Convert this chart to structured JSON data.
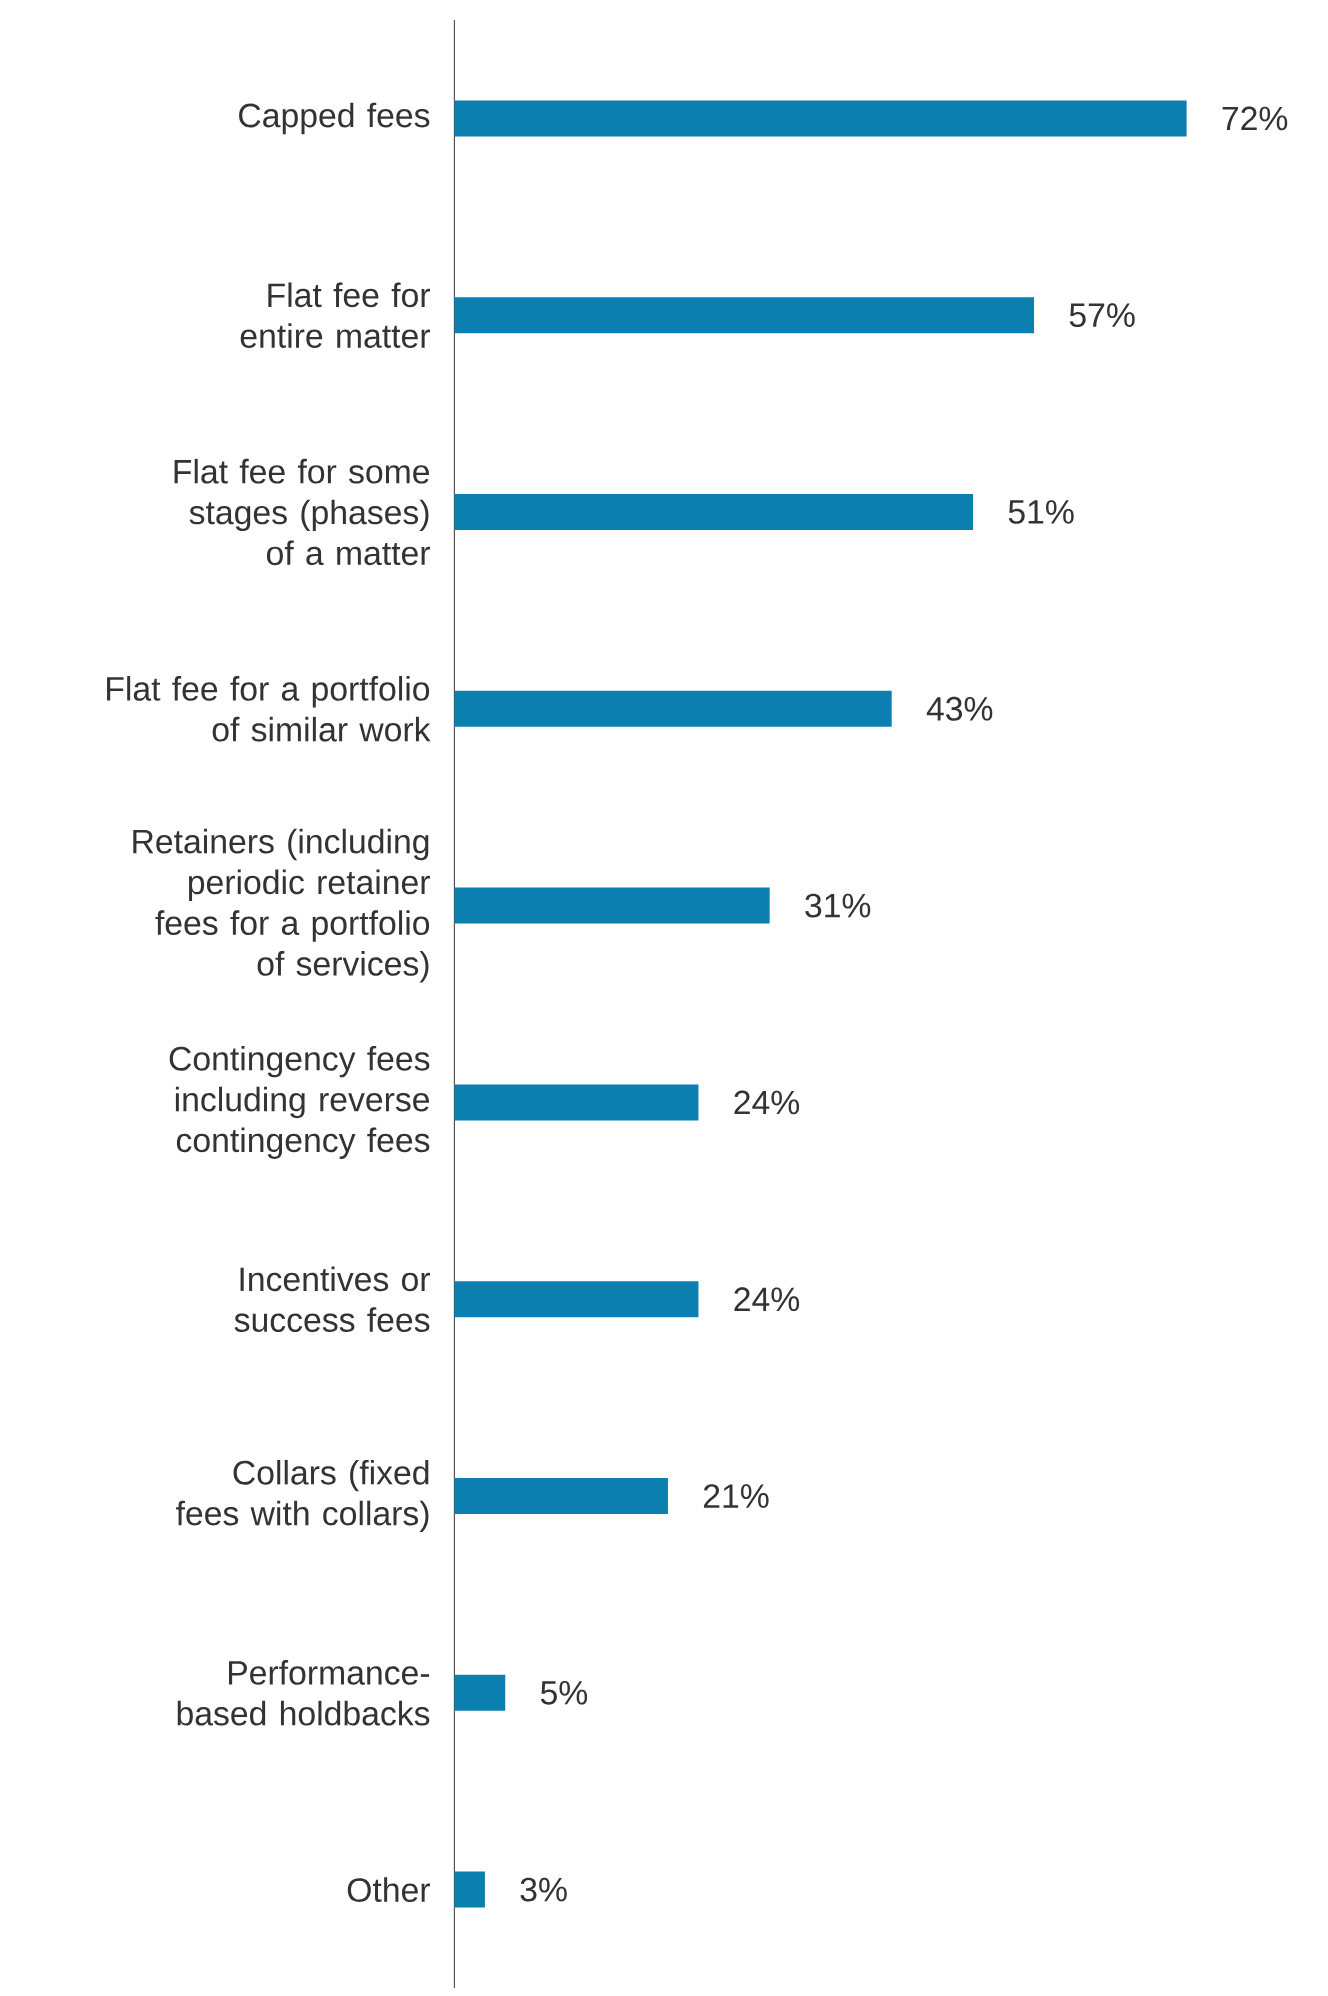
{
  "chart_data": {
    "type": "bar",
    "orientation": "horizontal",
    "categories": [
      "Capped fees",
      "Flat fee for entire matter",
      "Flat fee for some stages (phases) of a matter",
      "Flat fee for a portfolio of similar work",
      "Retainers (including periodic retainer fees for a portfolio of services)",
      "Contingency fees including reverse contingency fees",
      "Incentives or success fees",
      "Collars (fixed fees with collars)",
      "Performance-based holdbacks",
      "Other"
    ],
    "values": [
      72,
      57,
      51,
      43,
      31,
      24,
      24,
      21,
      5,
      3
    ],
    "value_labels": [
      "72%",
      "57%",
      "51%",
      "43%",
      "31%",
      "24%",
      "24%",
      "21%",
      "5%",
      "3%"
    ],
    "color": "#0a7fb0"
  }
}
